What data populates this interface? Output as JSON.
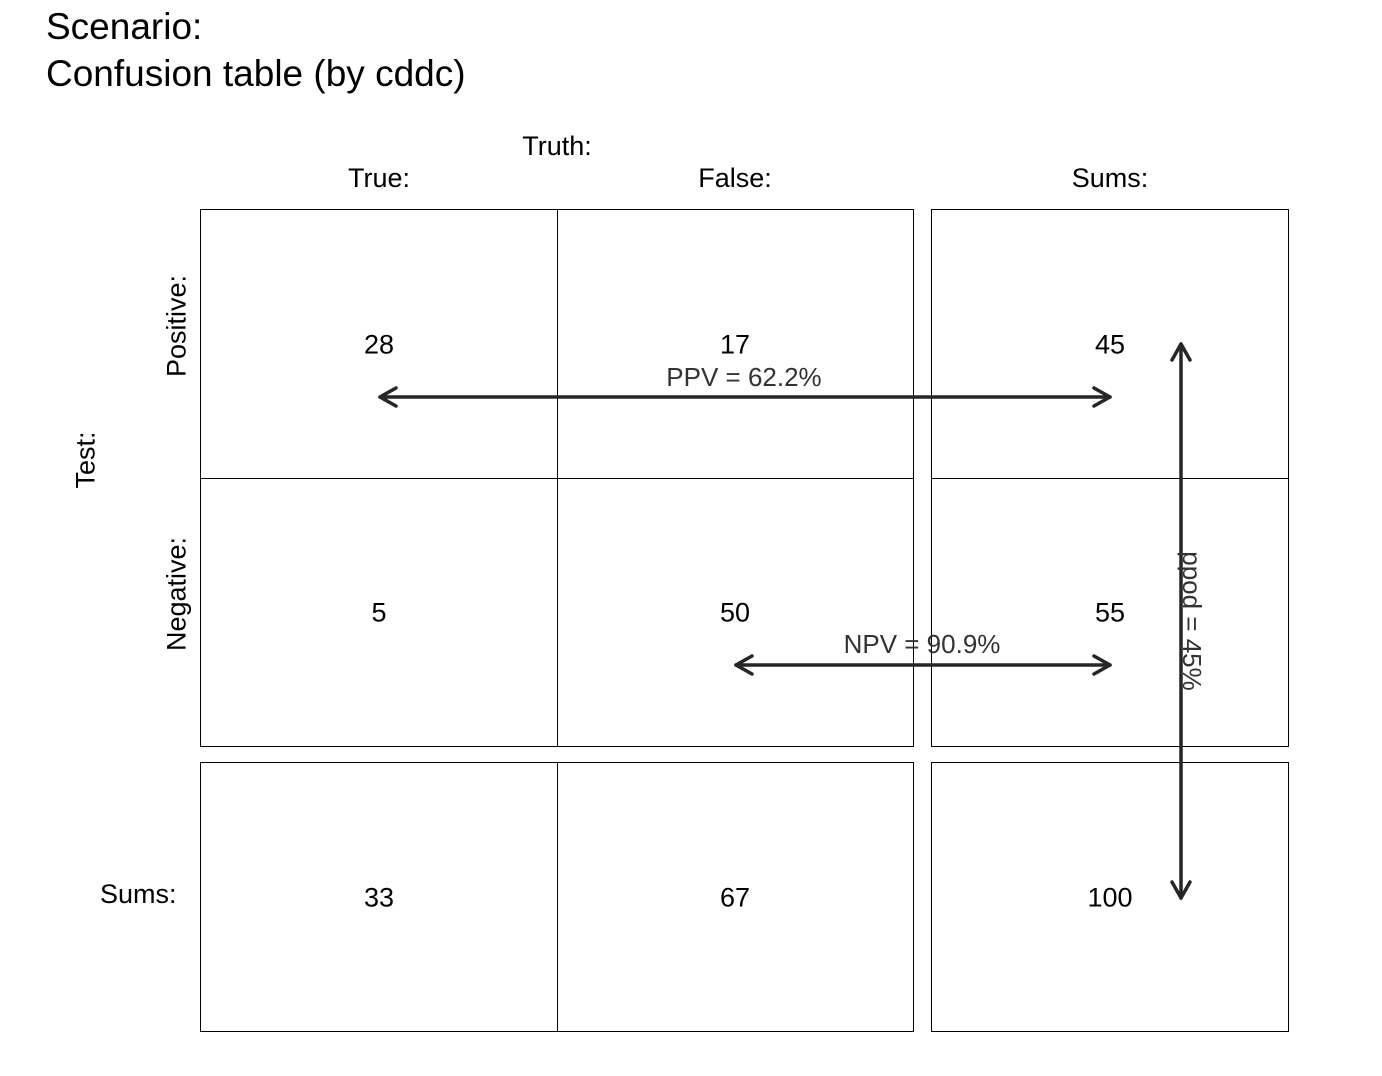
{
  "title": {
    "line1": "Scenario:",
    "line2": "Confusion table (by cddc)"
  },
  "truth_label": "Truth:",
  "test_label": "Test:",
  "columns": [
    "True:",
    "False:",
    "Sums:"
  ],
  "rows": [
    "Positive:",
    "Negative:",
    "Sums:"
  ],
  "cells": {
    "positive": [
      "28",
      "17",
      "45"
    ],
    "negative": [
      "5",
      "50",
      "55"
    ],
    "sums": [
      "33",
      "67",
      "100"
    ]
  },
  "annotations": {
    "ppv": "PPV = 62.2%",
    "npv": "NPV = 90.9%",
    "ppod": "ppod = 45%"
  },
  "colors": {
    "arrow": "#262626",
    "annotation_text": "#333333",
    "grid": "#000000"
  }
}
